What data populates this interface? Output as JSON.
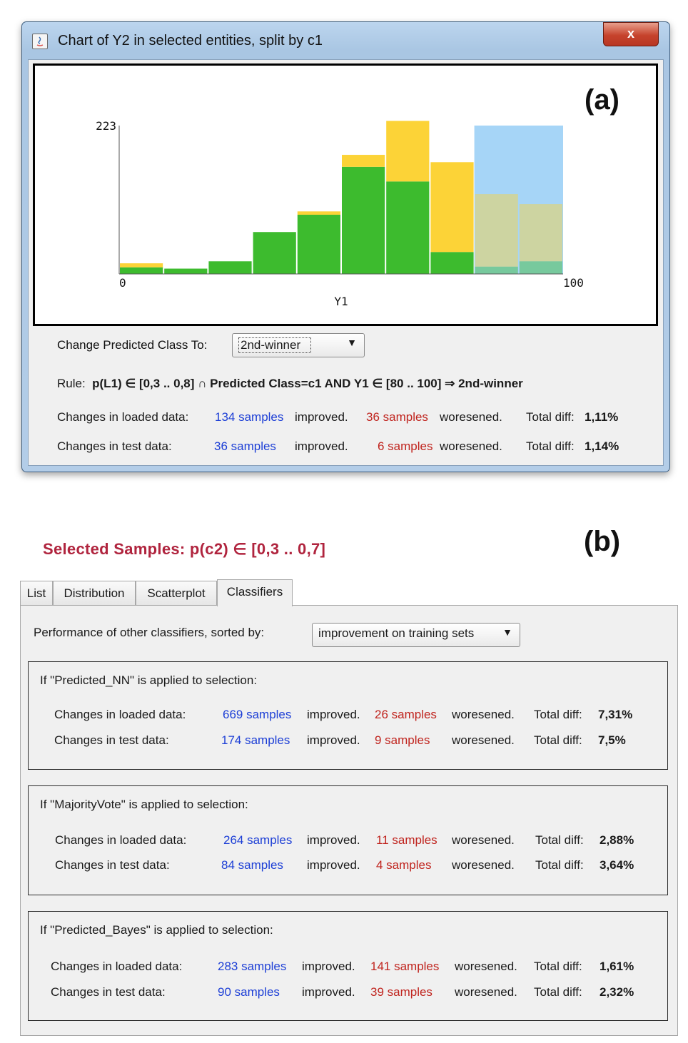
{
  "window": {
    "title": "Chart of Y2 in selected entities, split by c1",
    "close_glyph": "x",
    "panel_label": "(a)"
  },
  "chart_data": {
    "type": "bar",
    "stacked": true,
    "xlabel": "Y1",
    "x_tick_labels": [
      "0",
      "100"
    ],
    "xlim": [
      0,
      100
    ],
    "y_tick_labels": [
      "223"
    ],
    "ylim": [
      0,
      223
    ],
    "bin_width": 10,
    "categories": [
      "0-10",
      "10-20",
      "20-30",
      "30-40",
      "40-50",
      "50-60",
      "60-70",
      "70-80",
      "80-90",
      "90-100"
    ],
    "series": [
      {
        "values": [
          10,
          8,
          19,
          63,
          89,
          161,
          139,
          33,
          11,
          19
        ],
        "color": "#3dbb2e"
      },
      {
        "values": [
          6,
          0,
          0,
          0,
          5,
          18,
          91,
          135,
          109,
          86
        ],
        "color": "#fcd337"
      }
    ],
    "highlight": {
      "x_range": [
        80,
        100
      ],
      "color": "#a6d5f7"
    },
    "grid": false
  },
  "controls": {
    "change_label": "Change Predicted Class To:",
    "change_value": "2nd-winner"
  },
  "rule": {
    "prefix": "Rule:",
    "text": "p(L1) ∈ [0,3 .. 0,8] ∩ Predicted Class=c1 AND Y1 ∈ [80 .. 100] ⇒ 2nd-winner"
  },
  "window_stats": [
    {
      "label": "Changes in loaded data:",
      "improved": "134 samples",
      "improved_word": "improved.",
      "worsened": "36 samples",
      "worsened_word": "woresened.",
      "total_label": "Total diff:",
      "total": "1,11%"
    },
    {
      "label": "Changes in test data:",
      "improved": "36 samples",
      "improved_word": "improved.",
      "worsened": "6 samples",
      "worsened_word": "woresened.",
      "total_label": "Total diff:",
      "total": "1,14%"
    }
  ],
  "part_b": {
    "selected_title": "Selected Samples:  p(c2) ∈ [0,3 .. 0,7]",
    "panel_label": "(b)",
    "tabs": [
      "List",
      "Distribution",
      "Scatterplot",
      "Classifiers"
    ],
    "active_tab": "Classifiers",
    "sort_label": "Performance of other classifiers, sorted by:",
    "sort_value": "improvement on training sets",
    "groups": [
      {
        "title": "If \"Predicted_NN\" is applied to selection:",
        "rows": [
          {
            "label": "Changes in loaded data:",
            "improved": "669 samples",
            "improved_word": "improved.",
            "worsened": "26 samples",
            "worsened_word": "woresened.",
            "total_label": "Total diff:",
            "total": "7,31%"
          },
          {
            "label": "Changes in test data:",
            "improved": "174 samples",
            "improved_word": "improved.",
            "worsened": "9 samples",
            "worsened_word": "woresened.",
            "total_label": "Total diff:",
            "total": "7,5%"
          }
        ]
      },
      {
        "title": "If \"MajorityVote\" is applied to selection:",
        "rows": [
          {
            "label": "Changes in loaded data:",
            "improved": "264 samples",
            "improved_word": "improved.",
            "worsened": "11 samples",
            "worsened_word": "woresened.",
            "total_label": "Total diff:",
            "total": "2,88%"
          },
          {
            "label": "Changes in test data:",
            "improved": "84 samples",
            "improved_word": "improved.",
            "worsened": "4 samples",
            "worsened_word": "woresened.",
            "total_label": "Total diff:",
            "total": "3,64%"
          }
        ]
      },
      {
        "title": "If \"Predicted_Bayes\" is applied to selection:",
        "rows": [
          {
            "label": "Changes in loaded data:",
            "improved": "283 samples",
            "improved_word": "improved.",
            "worsened": "141 samples",
            "worsened_word": "woresened.",
            "total_label": "Total diff:",
            "total": "1,61%"
          },
          {
            "label": "Changes in test data:",
            "improved": "90 samples",
            "improved_word": "improved.",
            "worsened": "39 samples",
            "worsened_word": "woresened.",
            "total_label": "Total diff:",
            "total": "2,32%"
          }
        ]
      }
    ]
  }
}
